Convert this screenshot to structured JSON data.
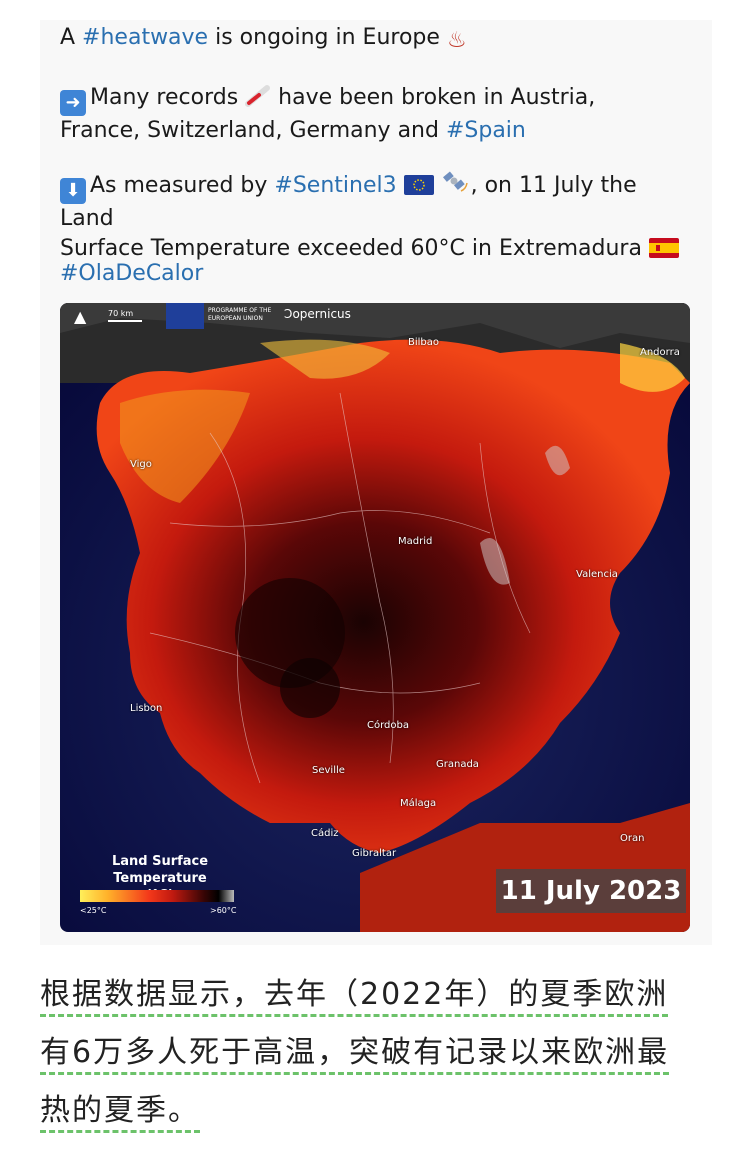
{
  "tweet": {
    "line1_pre": "A ",
    "line1_tag": "#heatwave",
    "line1_post": " is ongoing in Europe",
    "line1_emoji": "♨",
    "para2_a": "Many records",
    "para2_b": " have been broken in  Austria,",
    "para2_c": "France, Switzerland, Germany and ",
    "para2_tag": "#Spain",
    "para3_a": "As measured by ",
    "para3_tag": "#Sentinel3",
    "para3_b": ", on 11 July the Land",
    "para3_c": "Surface Temperature exceeded 60°C in Extremadura",
    "hashtag": "#OlaDeCalor"
  },
  "map": {
    "scale_label": "70 km",
    "eu_text": "PROGRAMME OF THE EUROPEAN UNION",
    "copernicus_label": "opernicus",
    "cities": [
      {
        "name": "Bilbao"
      },
      {
        "name": "Andorra"
      },
      {
        "name": "Vigo"
      },
      {
        "name": "Madrid"
      },
      {
        "name": "Valencia"
      },
      {
        "name": "Lisbon"
      },
      {
        "name": "Córdoba"
      },
      {
        "name": "Seville"
      },
      {
        "name": "Granada"
      },
      {
        "name": "Málaga"
      },
      {
        "name": "Cádiz"
      },
      {
        "name": "Gibraltar"
      },
      {
        "name": "Oran"
      }
    ],
    "legend_title_1": "Land Surface",
    "legend_title_2": "Temperature (°C)",
    "legend_min": "<25°C",
    "legend_max": ">60°C",
    "date": "11 July 2023"
  },
  "caption": {
    "line1": "根据数据显示，去年（2022年）的夏季欧洲",
    "line2": "有6万多人死于高温，突破有记录以来欧洲最",
    "line3": "热的夏季。"
  }
}
